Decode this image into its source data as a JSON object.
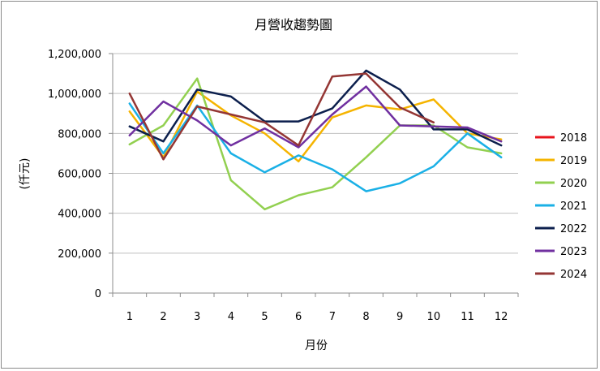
{
  "chart_data": {
    "type": "line",
    "title": "月營收趨勢圖",
    "xlabel": "月份",
    "ylabel": "(仟元)",
    "x": [
      1,
      2,
      3,
      4,
      5,
      6,
      7,
      8,
      9,
      10,
      11,
      12
    ],
    "ylim": [
      0,
      1200000
    ],
    "yticks": [
      0,
      200000,
      400000,
      600000,
      800000,
      1000000,
      1200000
    ],
    "ytick_labels": [
      "0",
      "200,000",
      "400,000",
      "600,000",
      "800,000",
      "1,000,000",
      "1,200,000"
    ],
    "grid": "horizontal",
    "legend_position": "right",
    "series": [
      {
        "name": "2018",
        "color": "#e8141c",
        "values": [
          null,
          null,
          null,
          null,
          null,
          null,
          null,
          null,
          null,
          null,
          null,
          null
        ]
      },
      {
        "name": "2019",
        "color": "#f5b400",
        "values": [
          910000,
          680000,
          1010000,
          890000,
          800000,
          660000,
          880000,
          940000,
          920000,
          970000,
          800000,
          770000
        ]
      },
      {
        "name": "2020",
        "color": "#92d050",
        "values": [
          745000,
          840000,
          1075000,
          565000,
          420000,
          490000,
          530000,
          680000,
          840000,
          840000,
          730000,
          700000
        ]
      },
      {
        "name": "2021",
        "color": "#1ab0e6",
        "values": [
          950000,
          700000,
          940000,
          700000,
          605000,
          690000,
          620000,
          510000,
          550000,
          635000,
          800000,
          680000
        ]
      },
      {
        "name": "2022",
        "color": "#0c1f4d",
        "values": [
          835000,
          760000,
          1020000,
          985000,
          860000,
          860000,
          925000,
          1115000,
          1020000,
          820000,
          820000,
          740000
        ]
      },
      {
        "name": "2023",
        "color": "#7030a0",
        "values": [
          790000,
          960000,
          865000,
          740000,
          825000,
          730000,
          895000,
          1035000,
          840000,
          835000,
          830000,
          760000
        ]
      },
      {
        "name": "2024",
        "color": "#943634",
        "values": [
          1000000,
          670000,
          935000,
          895000,
          855000,
          740000,
          1085000,
          1100000,
          930000,
          855000,
          null,
          null
        ]
      }
    ]
  }
}
